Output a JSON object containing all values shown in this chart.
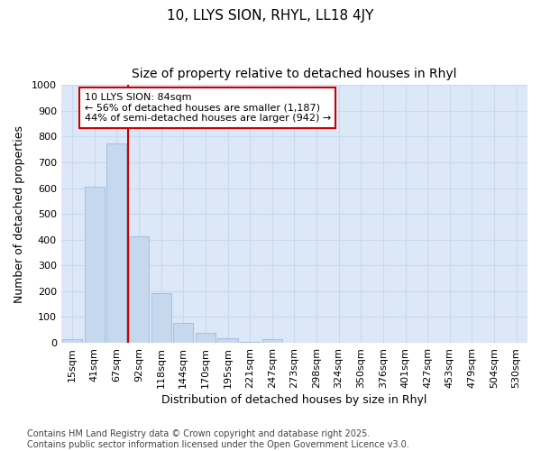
{
  "title": "10, LLYS SION, RHYL, LL18 4JY",
  "subtitle": "Size of property relative to detached houses in Rhyl",
  "xlabel": "Distribution of detached houses by size in Rhyl",
  "ylabel": "Number of detached properties",
  "categories": [
    "15sqm",
    "41sqm",
    "67sqm",
    "92sqm",
    "118sqm",
    "144sqm",
    "170sqm",
    "195sqm",
    "221sqm",
    "247sqm",
    "273sqm",
    "298sqm",
    "324sqm",
    "350sqm",
    "376sqm",
    "401sqm",
    "427sqm",
    "453sqm",
    "479sqm",
    "504sqm",
    "530sqm"
  ],
  "values": [
    15,
    607,
    775,
    413,
    193,
    78,
    40,
    17,
    5,
    13,
    0,
    0,
    0,
    0,
    0,
    0,
    0,
    0,
    0,
    0,
    0
  ],
  "bar_color": "#c5d8ee",
  "bar_edge_color": "#a0bbda",
  "vline_color": "#cc0000",
  "vline_pos": 2.5,
  "annotation_text": "10 LLYS SION: 84sqm\n← 56% of detached houses are smaller (1,187)\n44% of semi-detached houses are larger (942) →",
  "annotation_box_color": "#ffffff",
  "annotation_box_edge": "#cc0000",
  "ylim": [
    0,
    1000
  ],
  "yticks": [
    0,
    100,
    200,
    300,
    400,
    500,
    600,
    700,
    800,
    900,
    1000
  ],
  "grid_color": "#c8d8ee",
  "bg_color": "#dce8f8",
  "fig_bg_color": "#ffffff",
  "footer": "Contains HM Land Registry data © Crown copyright and database right 2025.\nContains public sector information licensed under the Open Government Licence v3.0.",
  "title_fontsize": 11,
  "subtitle_fontsize": 10,
  "xlabel_fontsize": 9,
  "ylabel_fontsize": 9,
  "tick_fontsize": 8,
  "footer_fontsize": 7,
  "annotation_fontsize": 8
}
